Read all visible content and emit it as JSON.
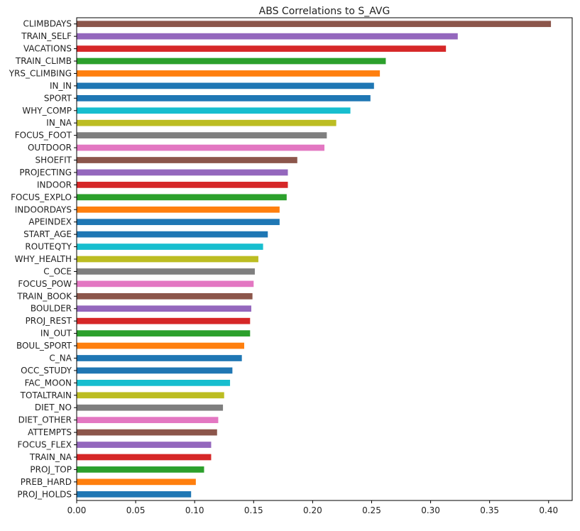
{
  "chart_data": {
    "type": "bar",
    "orientation": "horizontal",
    "title": "ABS Correlations to S_AVG",
    "xlabel": "",
    "ylabel": "",
    "xlim": [
      0.0,
      0.42
    ],
    "xticks": [
      "0.00",
      "0.05",
      "0.10",
      "0.15",
      "0.20",
      "0.25",
      "0.30",
      "0.35",
      "0.40"
    ],
    "grid": false,
    "legend": "none",
    "categories": [
      "CLIMBDAYS",
      "TRAIN_SELF",
      "VACATIONS",
      "TRAIN_CLIMB",
      "YRS_CLIMBING",
      "IN_IN",
      "SPORT",
      "WHY_COMP",
      "IN_NA",
      "FOCUS_FOOT",
      "OUTDOOR",
      "SHOEFIT",
      "PROJECTING",
      "INDOOR",
      "FOCUS_EXPLO",
      "INDOORDAYS",
      "APEINDEX",
      "START_AGE",
      "ROUTEQTY",
      "WHY_HEALTH",
      "C_OCE",
      "FOCUS_POW",
      "TRAIN_BOOK",
      "BOULDER",
      "PROJ_REST",
      "IN_OUT",
      "BOUL_SPORT",
      "C_NA",
      "OCC_STUDY",
      "FAC_MOON",
      "TOTALTRAIN",
      "DIET_NO",
      "DIET_OTHER",
      "ATTEMPTS",
      "FOCUS_FLEX",
      "TRAIN_NA",
      "PROJ_TOP",
      "PREB_HARD",
      "PROJ_HOLDS"
    ],
    "values": [
      0.402,
      0.323,
      0.313,
      0.262,
      0.257,
      0.252,
      0.249,
      0.232,
      0.22,
      0.212,
      0.21,
      0.187,
      0.179,
      0.179,
      0.178,
      0.172,
      0.172,
      0.162,
      0.158,
      0.154,
      0.151,
      0.15,
      0.149,
      0.148,
      0.147,
      0.147,
      0.142,
      0.14,
      0.132,
      0.13,
      0.125,
      0.124,
      0.12,
      0.119,
      0.114,
      0.114,
      0.108,
      0.101,
      0.097
    ],
    "colors": [
      "#8c564b",
      "#9467bd",
      "#d62728",
      "#2ca02c",
      "#ff7f0e",
      "#1f77b4",
      "#1f77b4",
      "#17becf",
      "#bcbd22",
      "#7f7f7f",
      "#e377c2",
      "#8c564b",
      "#9467bd",
      "#d62728",
      "#2ca02c",
      "#ff7f0e",
      "#1f77b4",
      "#1f77b4",
      "#17becf",
      "#bcbd22",
      "#7f7f7f",
      "#e377c2",
      "#8c564b",
      "#9467bd",
      "#d62728",
      "#2ca02c",
      "#ff7f0e",
      "#1f77b4",
      "#1f77b4",
      "#17becf",
      "#bcbd22",
      "#7f7f7f",
      "#e377c2",
      "#8c564b",
      "#9467bd",
      "#d62728",
      "#2ca02c",
      "#ff7f0e",
      "#1f77b4"
    ]
  }
}
